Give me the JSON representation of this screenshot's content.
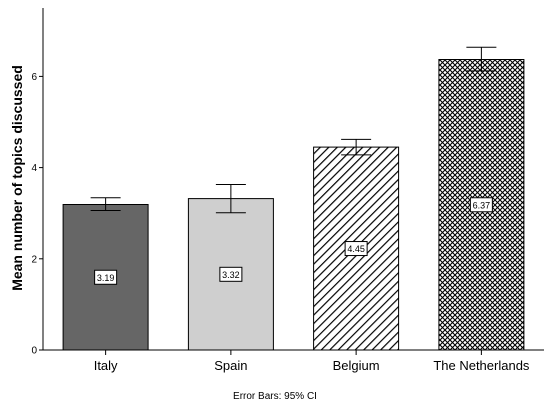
{
  "chart_data": {
    "type": "bar",
    "categories": [
      "Italy",
      "Spain",
      "Belgium",
      "The Netherlands"
    ],
    "values": [
      3.19,
      3.32,
      4.45,
      6.37
    ],
    "value_labels": [
      "3.19",
      "3.32",
      "4.45",
      "6.37"
    ],
    "error_bars": {
      "lower": [
        3.06,
        3.01,
        4.28,
        6.12
      ],
      "upper": [
        3.34,
        3.63,
        4.62,
        6.64
      ]
    },
    "ylabel": "Mean number of topics discussed",
    "xlabel": "",
    "ylim": [
      0,
      7.5
    ],
    "yticks": [
      0,
      2,
      4,
      6
    ],
    "ytick_labels": [
      "0",
      "2",
      "4",
      "6"
    ],
    "grid": false,
    "legend": "none",
    "note": "Error Bars: 95% CI",
    "bar_styles": [
      {
        "fill": "#666666",
        "pattern": "solid"
      },
      {
        "fill": "#cfcfcf",
        "pattern": "solid"
      },
      {
        "fill": "#ffffff",
        "pattern": "diagonal-hatch"
      },
      {
        "fill": "#ffffff",
        "pattern": "crosshatch"
      }
    ],
    "colors": {
      "axis": "#000000",
      "bar_outline": "#000000",
      "hatch": "#000000"
    }
  }
}
